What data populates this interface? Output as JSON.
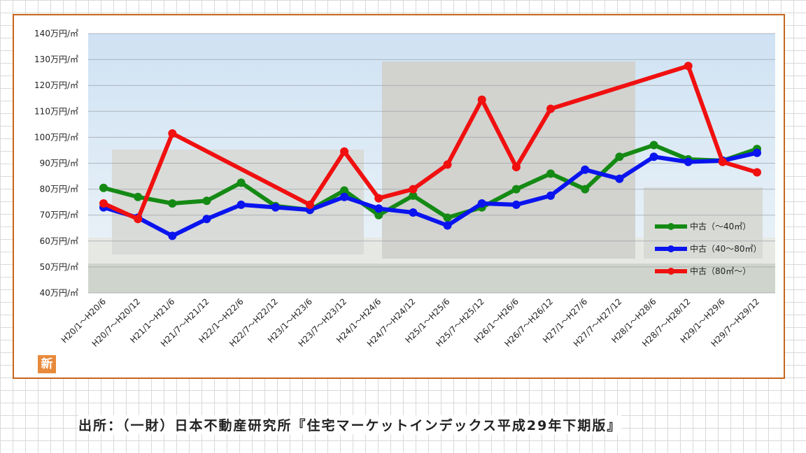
{
  "chart_data": {
    "type": "line",
    "categories": [
      "H20/1～H20/6",
      "H20/7～H20/12",
      "H21/1～H21/6",
      "H21/7～H21/12",
      "H22/1～H22/6",
      "H22/7～H22/12",
      "H23/1～H23/6",
      "H23/7～H23/12",
      "H24/1～H24/6",
      "H24/7～H24/12",
      "H25/1～H25/6",
      "H25/7～H25/12",
      "H26/1～H26/6",
      "H26/7～H26/12",
      "H27/1～H27/6",
      "H27/7～H27/12",
      "H28/1～H28/6",
      "H28/7～H28/12",
      "H29/1～H29/6",
      "H29/7～H29/12"
    ],
    "yticks": [
      "140万円/㎡",
      "130万円/㎡",
      "120万円/㎡",
      "110万円/㎡",
      "100万円/㎡",
      "90万円/㎡",
      "80万円/㎡",
      "70万円/㎡",
      "60万円/㎡",
      "50万円/㎡",
      "40万円/㎡"
    ],
    "ylim": [
      40,
      140
    ],
    "grid": true,
    "legend_position": "right",
    "series": [
      {
        "name": "中古（～40㎡）",
        "color": "#148a14",
        "values": [
          80.5,
          77,
          74.5,
          75.5,
          82.5,
          73.5,
          72,
          79.5,
          70,
          77.5,
          69,
          73,
          80,
          86,
          80,
          92.5,
          97,
          91.5,
          91,
          95.5
        ]
      },
      {
        "name": "中古（40～80㎡）",
        "color": "#0a14ee",
        "values": [
          73,
          69,
          62,
          68.5,
          74,
          73,
          72,
          77,
          72.5,
          71,
          66,
          74.5,
          74,
          77.5,
          87.5,
          84,
          92.5,
          90.5,
          91,
          94
        ]
      },
      {
        "name": "中古（80㎡～）",
        "color": "#f01010",
        "values": [
          74.5,
          68.5,
          101.5,
          null,
          null,
          null,
          74,
          94.5,
          76.5,
          80,
          89.5,
          114.5,
          88.5,
          111,
          null,
          null,
          null,
          127.5,
          90.5,
          86.5
        ]
      }
    ]
  },
  "badge": "新",
  "source": "出所：（一財）日本不動産研究所『住宅マーケットインデックス平成29年下期版』"
}
